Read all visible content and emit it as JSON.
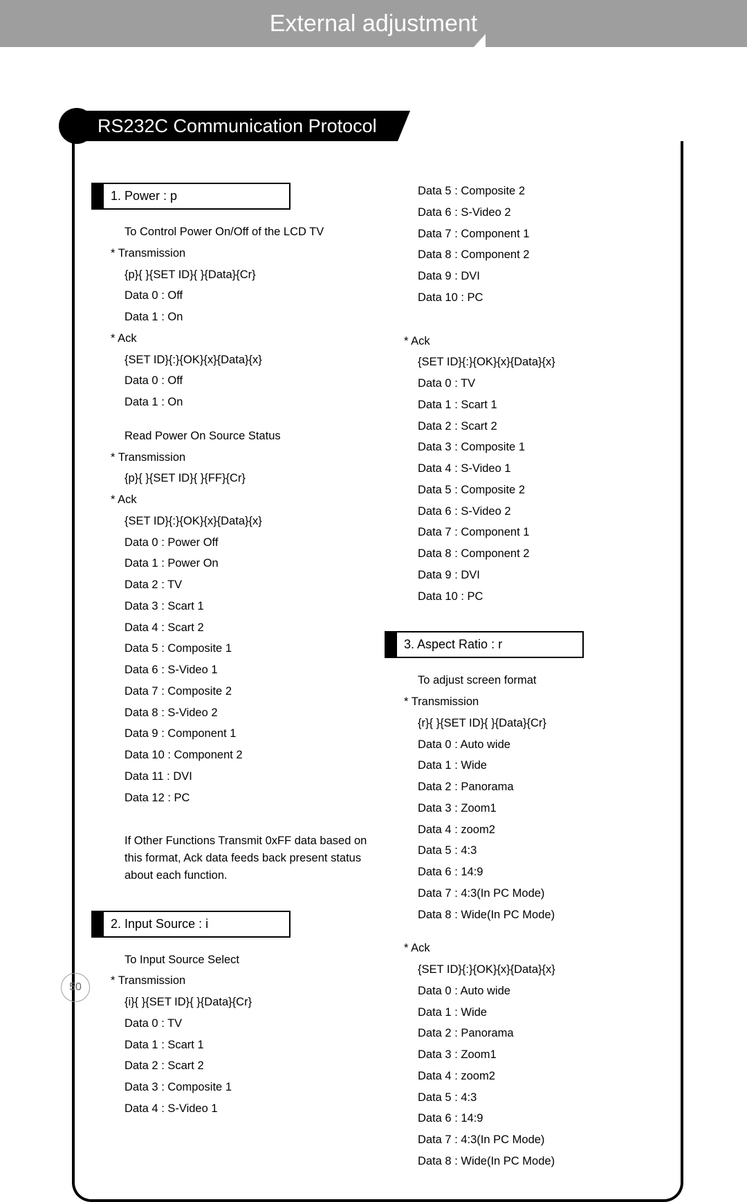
{
  "page": {
    "header_title": "External adjustment",
    "section_title": "RS232C Communication Protocol",
    "page_number": "50"
  },
  "colors": {
    "header_bg": "#9e9e9e",
    "header_text": "#ffffff",
    "bar_bg": "#000000",
    "bar_text": "#ffffff",
    "body_text": "#000000",
    "frame_border": "#000000",
    "page_num_border": "#9e9e9e",
    "page_num_text": "#6a6a6a"
  },
  "cmd1": {
    "title": "1. Power : p",
    "desc": "To Control Power On/Off of the LCD TV",
    "tx_label": "* Transmission",
    "tx_fmt": "{p}{ }{SET ID}{ }{Data}{Cr}",
    "tx_d0": "Data 0 : Off",
    "tx_d1": "Data 1 : On",
    "ack_label": "* Ack",
    "ack_fmt": "{SET ID}{:}{OK}{x}{Data}{x}",
    "ack_d0": "Data 0 : Off",
    "ack_d1": "Data 1 : On",
    "read_desc": "Read Power On Source Status",
    "read_tx_label": "* Transmission",
    "read_tx_fmt": "{p}{ }{SET ID}{ }{FF}{Cr}",
    "read_ack_label": "* Ack",
    "read_ack_fmt": "{SET ID}{:}{OK}{x}{Data}{x}",
    "rd0": "Data 0 : Power Off",
    "rd1": "Data 1 : Power On",
    "rd2": "Data 2 : TV",
    "rd3": "Data 3 : Scart 1",
    "rd4": "Data 4 : Scart 2",
    "rd5": "Data 5 : Composite 1",
    "rd6": "Data 6 : S-Video 1",
    "rd7": "Data 7 : Composite 2",
    "rd8": "Data 8 : S-Video 2",
    "rd9": "Data 9 : Component 1",
    "rd10": "Data 10 : Component 2",
    "rd11": "Data 11 : DVI",
    "rd12": "Data 12 : PC",
    "note": "If Other Functions Transmit 0xFF data based on this format, Ack data feeds back present status about each function."
  },
  "cmd2": {
    "title": "2. Input Source : i",
    "desc": "To Input Source Select",
    "tx_label": "* Transmission",
    "tx_fmt": "{i}{ }{SET ID}{ }{Data}{Cr}",
    "d0": "Data 0 : TV",
    "d1": "Data 1 : Scart 1",
    "d2": "Data 2 : Scart 2",
    "d3": "Data 3 : Composite 1",
    "d4": "Data 4 : S-Video 1",
    "d5": "Data 5 : Composite 2",
    "d6": "Data 6 : S-Video 2",
    "d7": "Data 7 : Component 1",
    "d8": "Data 8 : Component 2",
    "d9": "Data 9 : DVI",
    "d10": "Data 10 : PC",
    "ack_label": "* Ack",
    "ack_fmt": "{SET ID}{:}{OK}{x}{Data}{x}",
    "a0": "Data 0 : TV",
    "a1": "Data 1 : Scart 1",
    "a2": "Data 2 : Scart 2",
    "a3": "Data 3 : Composite 1",
    "a4": "Data 4 : S-Video 1",
    "a5": "Data 5 : Composite 2",
    "a6": "Data 6 : S-Video 2",
    "a7": "Data 7 : Component 1",
    "a8": "Data 8 : Component 2",
    "a9": "Data 9 : DVI",
    "a10": "Data 10 : PC"
  },
  "cmd3": {
    "title": "3. Aspect Ratio : r",
    "desc": "To adjust screen format",
    "tx_label": "* Transmission",
    "tx_fmt": "{r}{ }{SET ID}{ }{Data}{Cr}",
    "d0": "Data 0 : Auto wide",
    "d1": "Data 1 : Wide",
    "d2": "Data 2 : Panorama",
    "d3": "Data 3 : Zoom1",
    "d4": "Data 4 : zoom2",
    "d5": "Data 5 : 4:3",
    "d6": "Data 6 : 14:9",
    "d7": "Data 7 : 4:3(In PC Mode)",
    "d8": "Data 8 : Wide(In PC Mode)",
    "ack_label": "* Ack",
    "ack_fmt": "{SET ID}{:}{OK}{x}{Data}{x}",
    "a0": "Data 0 : Auto wide",
    "a1": "Data 1 : Wide",
    "a2": "Data 2 : Panorama",
    "a3": "Data 3 : Zoom1",
    "a4": "Data 4 : zoom2",
    "a5": "Data 5 : 4:3",
    "a6": "Data 6 : 14:9",
    "a7": "Data 7 : 4:3(In PC Mode)",
    "a8": "Data 8 : Wide(In PC Mode)"
  }
}
